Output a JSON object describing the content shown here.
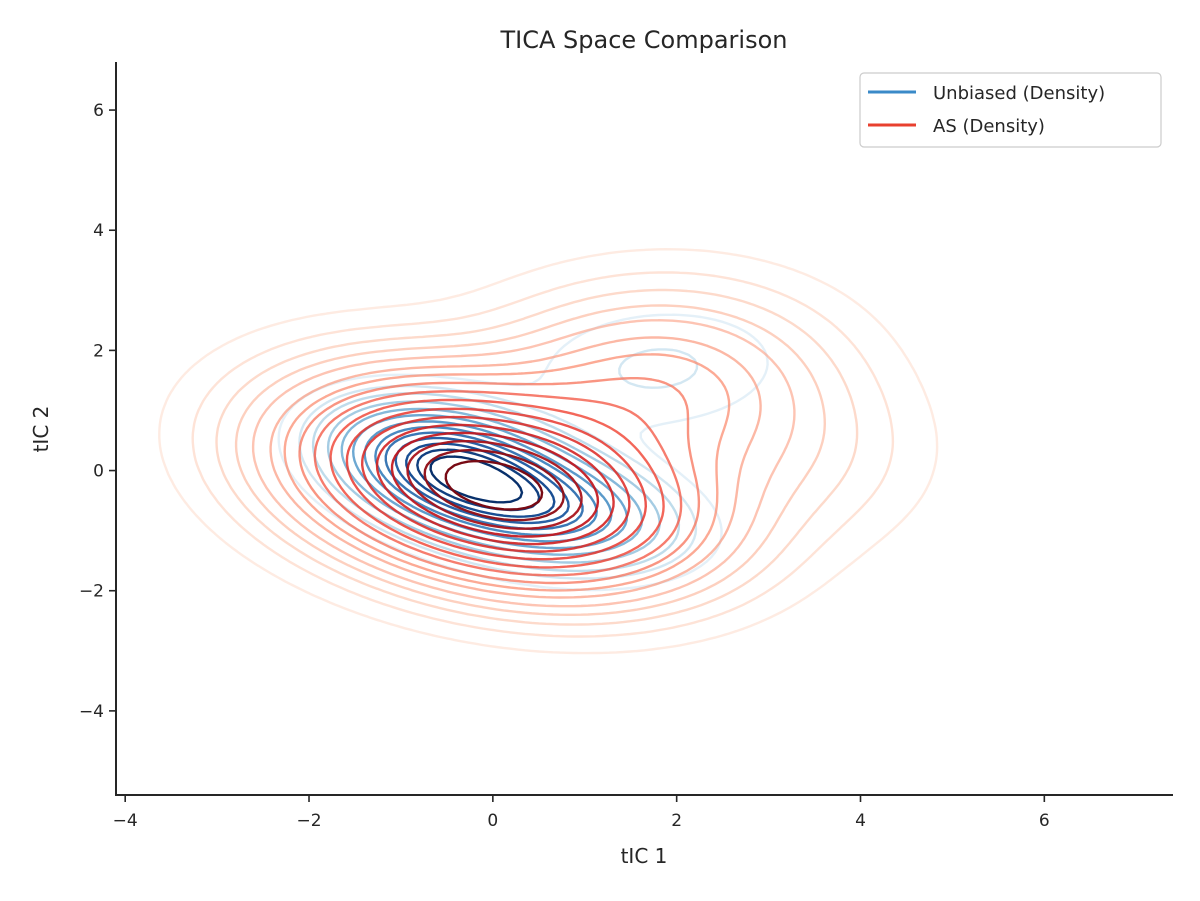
{
  "chart_data": {
    "type": "contour",
    "title": "TICA Space Comparison",
    "xlabel": "tIC 1",
    "ylabel": "tIC 2",
    "xlim": [
      -4.1,
      7.4
    ],
    "ylim": [
      -5.4,
      6.8
    ],
    "xticks": [
      -4,
      -2,
      0,
      2,
      4,
      6
    ],
    "yticks": [
      -4,
      -2,
      0,
      2,
      4,
      6
    ],
    "xtick_labels": [
      "−4",
      "−2",
      "0",
      "2",
      "4",
      "6"
    ],
    "ytick_labels": [
      "−4",
      "−2",
      "0",
      "2",
      "4",
      "6"
    ],
    "grid": false,
    "legend": {
      "placement": "top-right",
      "entries": [
        {
          "label": "Unbiased (Density)",
          "color": "#3a8ac8"
        },
        {
          "label": "AS (Density)",
          "color": "#e8402f"
        }
      ]
    },
    "series": [
      {
        "name": "Unbiased (Density)",
        "colormap": "Blues",
        "components": [
          {
            "center": [
              -0.5,
              0.1
            ],
            "sigma": [
              0.8,
              0.55
            ],
            "weight": 1.0,
            "angle": -28
          },
          {
            "center": [
              0.5,
              -0.6
            ],
            "sigma": [
              0.9,
              0.55
            ],
            "weight": 0.75,
            "angle": -20
          },
          {
            "center": [
              1.8,
              1.7
            ],
            "sigma": [
              0.95,
              0.7
            ],
            "weight": 0.12,
            "angle": 10
          }
        ],
        "levels": [
          0.04,
          0.08,
          0.12,
          0.18,
          0.25,
          0.32,
          0.4,
          0.48,
          0.56,
          0.64,
          0.72,
          0.8,
          0.88
        ]
      },
      {
        "name": "AS (Density)",
        "colormap": "Reds",
        "components": [
          {
            "center": [
              -0.4,
              0.0
            ],
            "sigma": [
              1.15,
              0.85
            ],
            "weight": 1.0,
            "angle": -25
          },
          {
            "center": [
              0.7,
              -0.7
            ],
            "sigma": [
              1.1,
              0.8
            ],
            "weight": 0.6,
            "angle": -15
          },
          {
            "center": [
              1.7,
              1.3
            ],
            "sigma": [
              1.1,
              0.95
            ],
            "weight": 0.3,
            "angle": 15
          },
          {
            "center": [
              3.2,
              0.2
            ],
            "sigma": [
              0.9,
              0.9
            ],
            "weight": 0.06,
            "angle": 0
          }
        ],
        "levels": [
          0.01,
          0.025,
          0.045,
          0.07,
          0.1,
          0.14,
          0.18,
          0.23,
          0.29,
          0.36,
          0.44,
          0.52,
          0.6,
          0.68,
          0.76,
          0.84,
          0.92
        ]
      }
    ]
  }
}
